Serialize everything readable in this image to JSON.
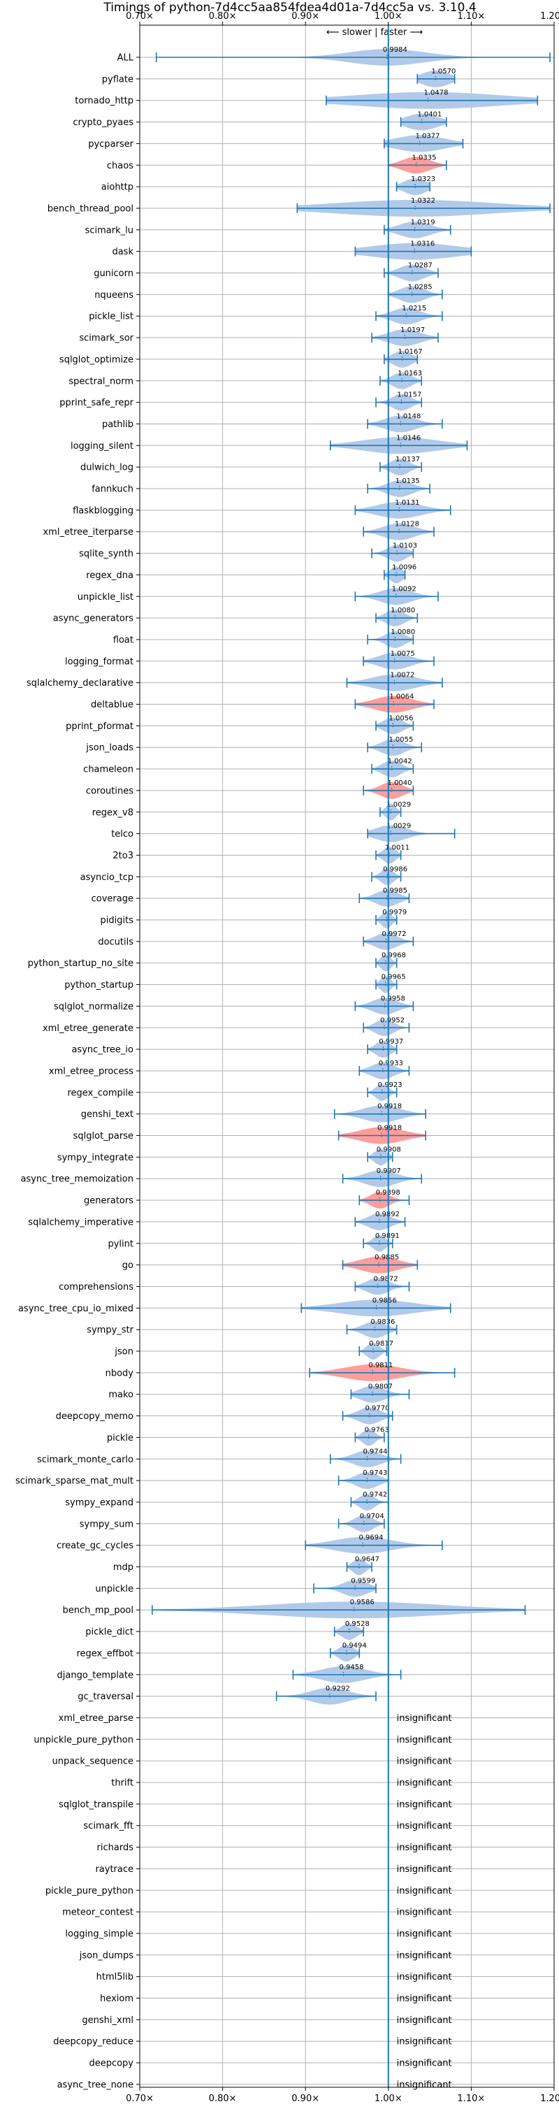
{
  "chart_data": {
    "type": "violin",
    "title": "Timings of python-7d4cc5aa854fdea4d01a-7d4cc5a vs. 3.10.4",
    "annotation": "⟵ slower | faster ⟶",
    "xlim": [
      0.7,
      1.2
    ],
    "x_ticks": [
      0.7,
      0.8,
      0.9,
      1.0,
      1.1,
      1.2
    ],
    "x_tick_labels": [
      "0.70×",
      "0.80×",
      "0.90×",
      "1.00×",
      "1.10×",
      "1.20×"
    ],
    "reference_x": 1.0,
    "grid": true,
    "insignificant_label": "insignificant",
    "colors": {
      "normal": "#aec7e8",
      "slower": "#ff9896",
      "line": "#1f77b4",
      "grid": "#b0b0b0"
    },
    "benchmarks": [
      {
        "name": "ALL",
        "value": 0.9984,
        "label": "0.9984",
        "min": 0.72,
        "max": 1.195,
        "spread": 0.06,
        "slower": false
      },
      {
        "name": "pyflate",
        "value": 1.057,
        "label": "1.0570",
        "min": 1.035,
        "max": 1.08,
        "spread": 0.022,
        "slower": false
      },
      {
        "name": "tornado_http",
        "value": 1.0478,
        "label": "1.0478",
        "min": 0.925,
        "max": 1.18,
        "spread": 0.12,
        "slower": false
      },
      {
        "name": "crypto_pyaes",
        "value": 1.0401,
        "label": "1.0401",
        "min": 1.015,
        "max": 1.07,
        "spread": 0.025,
        "slower": false
      },
      {
        "name": "pycparser",
        "value": 1.0377,
        "label": "1.0377",
        "min": 0.995,
        "max": 1.09,
        "spread": 0.04,
        "slower": false
      },
      {
        "name": "chaos",
        "value": 1.0335,
        "label": "1.0335",
        "min": 1.0,
        "max": 1.07,
        "spread": 0.022,
        "slower": true
      },
      {
        "name": "aiohttp",
        "value": 1.0323,
        "label": "1.0323",
        "min": 1.01,
        "max": 1.05,
        "spread": 0.018,
        "slower": false
      },
      {
        "name": "bench_thread_pool",
        "value": 1.0322,
        "label": "1.0322",
        "min": 0.89,
        "max": 1.195,
        "spread": 0.13,
        "slower": false
      },
      {
        "name": "scimark_lu",
        "value": 1.0319,
        "label": "1.0319",
        "min": 0.995,
        "max": 1.075,
        "spread": 0.025,
        "slower": false
      },
      {
        "name": "dask",
        "value": 1.0316,
        "label": "1.0316",
        "min": 0.96,
        "max": 1.1,
        "spread": 0.07,
        "slower": false
      },
      {
        "name": "gunicorn",
        "value": 1.0287,
        "label": "1.0287",
        "min": 0.995,
        "max": 1.06,
        "spread": 0.02,
        "slower": false
      },
      {
        "name": "nqueens",
        "value": 1.0285,
        "label": "1.0285",
        "min": 1.0,
        "max": 1.065,
        "spread": 0.02,
        "slower": false
      },
      {
        "name": "pickle_list",
        "value": 1.0215,
        "label": "1.0215",
        "min": 0.985,
        "max": 1.065,
        "spread": 0.022,
        "slower": false
      },
      {
        "name": "scimark_sor",
        "value": 1.0197,
        "label": "1.0197",
        "min": 0.98,
        "max": 1.06,
        "spread": 0.025,
        "slower": false
      },
      {
        "name": "sqlglot_optimize",
        "value": 1.0167,
        "label": "1.0167",
        "min": 0.995,
        "max": 1.035,
        "spread": 0.015,
        "slower": false
      },
      {
        "name": "spectral_norm",
        "value": 1.0163,
        "label": "1.0163",
        "min": 0.99,
        "max": 1.04,
        "spread": 0.015,
        "slower": false
      },
      {
        "name": "pprint_safe_repr",
        "value": 1.0157,
        "label": "1.0157",
        "min": 0.985,
        "max": 1.04,
        "spread": 0.015,
        "slower": false
      },
      {
        "name": "pathlib",
        "value": 1.0148,
        "label": "1.0148",
        "min": 0.975,
        "max": 1.065,
        "spread": 0.025,
        "slower": false
      },
      {
        "name": "logging_silent",
        "value": 1.0146,
        "label": "1.0146",
        "min": 0.93,
        "max": 1.095,
        "spread": 0.06,
        "slower": false
      },
      {
        "name": "dulwich_log",
        "value": 1.0137,
        "label": "1.0137",
        "min": 0.99,
        "max": 1.04,
        "spread": 0.015,
        "slower": false
      },
      {
        "name": "fannkuch",
        "value": 1.0135,
        "label": "1.0135",
        "min": 0.975,
        "max": 1.05,
        "spread": 0.02,
        "slower": false
      },
      {
        "name": "flaskblogging",
        "value": 1.0131,
        "label": "1.0131",
        "min": 0.96,
        "max": 1.075,
        "spread": 0.035,
        "slower": false
      },
      {
        "name": "xml_etree_iterparse",
        "value": 1.0128,
        "label": "1.0128",
        "min": 0.97,
        "max": 1.055,
        "spread": 0.025,
        "slower": false
      },
      {
        "name": "sqlite_synth",
        "value": 1.0103,
        "label": "1.0103",
        "min": 0.98,
        "max": 1.03,
        "spread": 0.015,
        "slower": false
      },
      {
        "name": "regex_dna",
        "value": 1.0096,
        "label": "1.0096",
        "min": 0.995,
        "max": 1.02,
        "spread": 0.01,
        "slower": false
      },
      {
        "name": "unpickle_list",
        "value": 1.0092,
        "label": "1.0092",
        "min": 0.96,
        "max": 1.06,
        "spread": 0.025,
        "slower": false
      },
      {
        "name": "async_generators",
        "value": 1.008,
        "label": "1.0080",
        "min": 0.985,
        "max": 1.035,
        "spread": 0.015,
        "slower": false
      },
      {
        "name": "float",
        "value": 1.008,
        "label": "1.0080",
        "min": 0.975,
        "max": 1.03,
        "spread": 0.015,
        "slower": false
      },
      {
        "name": "logging_format",
        "value": 1.0075,
        "label": "1.0075",
        "min": 0.97,
        "max": 1.055,
        "spread": 0.025,
        "slower": false
      },
      {
        "name": "sqlalchemy_declarative",
        "value": 1.0072,
        "label": "1.0072",
        "min": 0.95,
        "max": 1.065,
        "spread": 0.035,
        "slower": false
      },
      {
        "name": "deltablue",
        "value": 1.0064,
        "label": "1.0064",
        "min": 0.96,
        "max": 1.055,
        "spread": 0.03,
        "slower": true
      },
      {
        "name": "pprint_pformat",
        "value": 1.0056,
        "label": "1.0056",
        "min": 0.985,
        "max": 1.03,
        "spread": 0.015,
        "slower": false
      },
      {
        "name": "json_loads",
        "value": 1.0055,
        "label": "1.0055",
        "min": 0.975,
        "max": 1.04,
        "spread": 0.018,
        "slower": false
      },
      {
        "name": "chameleon",
        "value": 1.0042,
        "label": "1.0042",
        "min": 0.98,
        "max": 1.03,
        "spread": 0.015,
        "slower": false
      },
      {
        "name": "coroutines",
        "value": 1.004,
        "label": "1.0040",
        "min": 0.97,
        "max": 1.03,
        "spread": 0.018,
        "slower": true
      },
      {
        "name": "regex_v8",
        "value": 1.0029,
        "label": "1.0029",
        "min": 0.99,
        "max": 1.015,
        "spread": 0.008,
        "slower": false
      },
      {
        "name": "telco",
        "value": 1.0029,
        "label": "1.0029",
        "min": 0.975,
        "max": 1.08,
        "spread": 0.025,
        "slower": false
      },
      {
        "name": "2to3",
        "value": 1.0011,
        "label": "1.0011",
        "min": 0.985,
        "max": 1.015,
        "spread": 0.01,
        "slower": false
      },
      {
        "name": "asyncio_tcp",
        "value": 0.9986,
        "label": "0.9986",
        "min": 0.98,
        "max": 1.015,
        "spread": 0.01,
        "slower": false
      },
      {
        "name": "coverage",
        "value": 0.9985,
        "label": "0.9985",
        "min": 0.965,
        "max": 1.025,
        "spread": 0.018,
        "slower": false
      },
      {
        "name": "pidigits",
        "value": 0.9979,
        "label": "0.9979",
        "min": 0.985,
        "max": 1.01,
        "spread": 0.008,
        "slower": false
      },
      {
        "name": "docutils",
        "value": 0.9972,
        "label": "0.9972",
        "min": 0.97,
        "max": 1.03,
        "spread": 0.018,
        "slower": false
      },
      {
        "name": "python_startup_no_site",
        "value": 0.9968,
        "label": "0.9968",
        "min": 0.985,
        "max": 1.01,
        "spread": 0.008,
        "slower": false
      },
      {
        "name": "python_startup",
        "value": 0.9965,
        "label": "0.9965",
        "min": 0.985,
        "max": 1.01,
        "spread": 0.008,
        "slower": false
      },
      {
        "name": "sqlglot_normalize",
        "value": 0.9958,
        "label": "0.9958",
        "min": 0.96,
        "max": 1.03,
        "spread": 0.02,
        "slower": false
      },
      {
        "name": "xml_etree_generate",
        "value": 0.9952,
        "label": "0.9952",
        "min": 0.97,
        "max": 1.025,
        "spread": 0.015,
        "slower": false
      },
      {
        "name": "async_tree_io",
        "value": 0.9937,
        "label": "0.9937",
        "min": 0.975,
        "max": 1.01,
        "spread": 0.012,
        "slower": false
      },
      {
        "name": "xml_etree_process",
        "value": 0.9933,
        "label": "0.9933",
        "min": 0.965,
        "max": 1.025,
        "spread": 0.018,
        "slower": false
      },
      {
        "name": "regex_compile",
        "value": 0.9923,
        "label": "0.9923",
        "min": 0.975,
        "max": 1.01,
        "spread": 0.01,
        "slower": false
      },
      {
        "name": "genshi_text",
        "value": 0.9918,
        "label": "0.9918",
        "min": 0.935,
        "max": 1.045,
        "spread": 0.03,
        "slower": false
      },
      {
        "name": "sqlglot_parse",
        "value": 0.9918,
        "label": "0.9918",
        "min": 0.94,
        "max": 1.045,
        "spread": 0.035,
        "slower": true
      },
      {
        "name": "sympy_integrate",
        "value": 0.9908,
        "label": "0.9908",
        "min": 0.975,
        "max": 1.005,
        "spread": 0.01,
        "slower": false
      },
      {
        "name": "async_tree_memoization",
        "value": 0.9907,
        "label": "0.9907",
        "min": 0.945,
        "max": 1.04,
        "spread": 0.025,
        "slower": false
      },
      {
        "name": "generators",
        "value": 0.9898,
        "label": "0.9898",
        "min": 0.965,
        "max": 1.025,
        "spread": 0.015,
        "slower": true
      },
      {
        "name": "sqlalchemy_imperative",
        "value": 0.9892,
        "label": "0.9892",
        "min": 0.96,
        "max": 1.02,
        "spread": 0.018,
        "slower": false
      },
      {
        "name": "pylint",
        "value": 0.9891,
        "label": "0.9891",
        "min": 0.97,
        "max": 1.005,
        "spread": 0.01,
        "slower": false
      },
      {
        "name": "go",
        "value": 0.9885,
        "label": "0.9885",
        "min": 0.945,
        "max": 1.035,
        "spread": 0.03,
        "slower": true
      },
      {
        "name": "comprehensions",
        "value": 0.9872,
        "label": "0.9872",
        "min": 0.96,
        "max": 1.025,
        "spread": 0.018,
        "slower": false
      },
      {
        "name": "async_tree_cpu_io_mixed",
        "value": 0.9856,
        "label": "0.9856",
        "min": 0.895,
        "max": 1.075,
        "spread": 0.06,
        "slower": false
      },
      {
        "name": "sympy_str",
        "value": 0.9836,
        "label": "0.9836",
        "min": 0.95,
        "max": 1.01,
        "spread": 0.018,
        "slower": false
      },
      {
        "name": "json",
        "value": 0.9817,
        "label": "0.9817",
        "min": 0.965,
        "max": 0.998,
        "spread": 0.01,
        "slower": false
      },
      {
        "name": "nbody",
        "value": 0.9811,
        "label": "0.9811",
        "min": 0.905,
        "max": 1.08,
        "spread": 0.045,
        "slower": true
      },
      {
        "name": "mako",
        "value": 0.9807,
        "label": "0.9807",
        "min": 0.955,
        "max": 1.025,
        "spread": 0.02,
        "slower": false
      },
      {
        "name": "deepcopy_memo",
        "value": 0.977,
        "label": "0.9770",
        "min": 0.945,
        "max": 1.005,
        "spread": 0.018,
        "slower": false
      },
      {
        "name": "pickle",
        "value": 0.9763,
        "label": "0.9763",
        "min": 0.96,
        "max": 0.995,
        "spread": 0.01,
        "slower": false
      },
      {
        "name": "scimark_monte_carlo",
        "value": 0.9744,
        "label": "0.9744",
        "min": 0.93,
        "max": 1.015,
        "spread": 0.022,
        "slower": false
      },
      {
        "name": "scimark_sparse_mat_mult",
        "value": 0.9743,
        "label": "0.9743",
        "min": 0.94,
        "max": 1.0,
        "spread": 0.018,
        "slower": false
      },
      {
        "name": "sympy_expand",
        "value": 0.9742,
        "label": "0.9742",
        "min": 0.955,
        "max": 1.0,
        "spread": 0.012,
        "slower": false
      },
      {
        "name": "sympy_sum",
        "value": 0.9704,
        "label": "0.9704",
        "min": 0.94,
        "max": 0.995,
        "spread": 0.015,
        "slower": false
      },
      {
        "name": "create_gc_cycles",
        "value": 0.9694,
        "label": "0.9694",
        "min": 0.9,
        "max": 1.065,
        "spread": 0.045,
        "slower": false
      },
      {
        "name": "mdp",
        "value": 0.9647,
        "label": "0.9647",
        "min": 0.95,
        "max": 0.98,
        "spread": 0.01,
        "slower": false
      },
      {
        "name": "unpickle",
        "value": 0.9599,
        "label": "0.9599",
        "min": 0.91,
        "max": 0.985,
        "spread": 0.02,
        "slower": false
      },
      {
        "name": "bench_mp_pool",
        "value": 0.9586,
        "label": "0.9586",
        "min": 0.715,
        "max": 1.165,
        "spread": 0.14,
        "slower": false
      },
      {
        "name": "pickle_dict",
        "value": 0.9528,
        "label": "0.9528",
        "min": 0.935,
        "max": 0.97,
        "spread": 0.012,
        "slower": false
      },
      {
        "name": "regex_effbot",
        "value": 0.9494,
        "label": "0.9494",
        "min": 0.93,
        "max": 0.965,
        "spread": 0.012,
        "slower": false
      },
      {
        "name": "django_template",
        "value": 0.9458,
        "label": "0.9458",
        "min": 0.885,
        "max": 1.015,
        "spread": 0.035,
        "slower": false
      },
      {
        "name": "gc_traversal",
        "value": 0.9292,
        "label": "0.9292",
        "min": 0.865,
        "max": 0.985,
        "spread": 0.03,
        "slower": false
      },
      {
        "name": "xml_etree_parse",
        "insignificant": true
      },
      {
        "name": "unpickle_pure_python",
        "insignificant": true
      },
      {
        "name": "unpack_sequence",
        "insignificant": true
      },
      {
        "name": "thrift",
        "insignificant": true
      },
      {
        "name": "sqlglot_transpile",
        "insignificant": true
      },
      {
        "name": "scimark_fft",
        "insignificant": true
      },
      {
        "name": "richards",
        "insignificant": true
      },
      {
        "name": "raytrace",
        "insignificant": true
      },
      {
        "name": "pickle_pure_python",
        "insignificant": true
      },
      {
        "name": "meteor_contest",
        "insignificant": true
      },
      {
        "name": "logging_simple",
        "insignificant": true
      },
      {
        "name": "json_dumps",
        "insignificant": true
      },
      {
        "name": "html5lib",
        "insignificant": true
      },
      {
        "name": "hexiom",
        "insignificant": true
      },
      {
        "name": "genshi_xml",
        "insignificant": true
      },
      {
        "name": "deepcopy_reduce",
        "insignificant": true
      },
      {
        "name": "deepcopy",
        "insignificant": true
      },
      {
        "name": "async_tree_none",
        "insignificant": true
      }
    ]
  }
}
